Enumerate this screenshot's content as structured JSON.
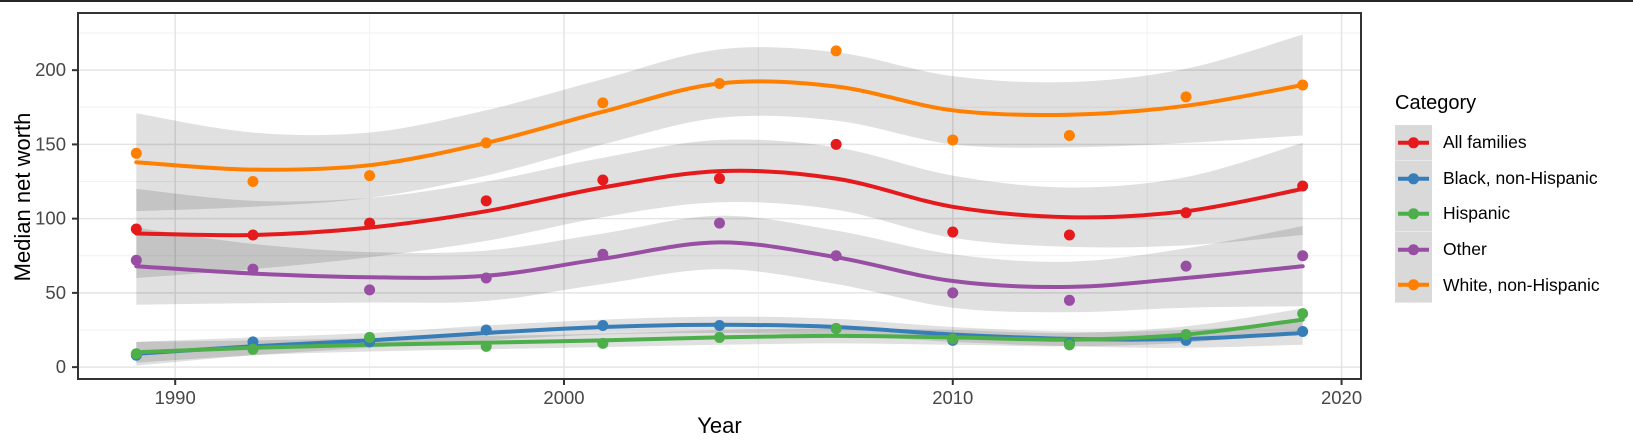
{
  "chart_data": {
    "type": "scatter",
    "title": "",
    "xlabel": "Year",
    "ylabel": "Median net worth",
    "legend_title": "Category",
    "legend_position": "right",
    "grid": true,
    "x": [
      1989,
      1992,
      1995,
      1998,
      2001,
      2004,
      2007,
      2010,
      2013,
      2016,
      2019
    ],
    "xlim": [
      1987.5,
      2020.5
    ],
    "ylim": [
      -8,
      238.5
    ],
    "x_tick_values": [
      1990,
      2000,
      2010,
      2020
    ],
    "x_tick_labels": [
      "1990",
      "2000",
      "2010",
      "2020"
    ],
    "x_minor_values": [
      1995,
      2005,
      2015
    ],
    "y_tick_values": [
      0,
      50,
      100,
      150,
      200
    ],
    "y_tick_labels": [
      "0",
      "50",
      "100",
      "150",
      "200"
    ],
    "y_minor_values": [
      25,
      75,
      125,
      175,
      225
    ],
    "series": [
      {
        "name": "All families",
        "color": "#E41A1C",
        "points": [
          93,
          89,
          97,
          112,
          126,
          127,
          150,
          91,
          89,
          104,
          122
        ],
        "trend": [
          90,
          89,
          94,
          105,
          121,
          132,
          127,
          108,
          101,
          105,
          120
        ],
        "band": [
          30,
          23,
          20,
          20,
          20,
          21,
          21,
          21,
          20,
          23,
          31
        ]
      },
      {
        "name": "Black, non-Hispanic",
        "color": "#377EB8",
        "points": [
          8,
          17,
          17,
          25,
          28,
          28,
          26,
          18,
          16,
          18,
          24
        ],
        "trend": [
          9,
          14,
          18,
          23,
          27,
          28.5,
          27,
          22,
          19,
          19,
          23
        ],
        "band": [
          8,
          6,
          5,
          5,
          5,
          5.5,
          5.5,
          5,
          5,
          6,
          8
        ]
      },
      {
        "name": "Hispanic",
        "color": "#4DAF4A",
        "points": [
          9,
          12,
          20,
          14,
          16,
          20,
          26,
          19,
          15,
          22,
          36
        ],
        "trend": [
          10,
          13,
          15,
          16.5,
          18,
          20,
          21,
          20,
          18.5,
          22,
          32
        ],
        "band": [
          7,
          5,
          4.5,
          4.5,
          4.5,
          5,
          5,
          5,
          4.5,
          5.5,
          7.5
        ]
      },
      {
        "name": "Other",
        "color": "#984EA3",
        "points": [
          72,
          66,
          52,
          60,
          76,
          97,
          75,
          50,
          45,
          68,
          75
        ],
        "trend": [
          68,
          63,
          60.5,
          61.5,
          73,
          84,
          74,
          58,
          54,
          60,
          68
        ],
        "band": [
          26,
          20,
          17,
          17,
          17,
          18,
          18,
          18,
          17,
          20,
          27
        ]
      },
      {
        "name": "White, non-Hispanic",
        "color": "#FF7F00",
        "points": [
          144,
          125,
          129,
          151,
          178,
          191,
          213,
          153,
          156,
          182,
          190
        ],
        "trend": [
          138,
          133,
          136,
          151,
          172,
          191,
          189,
          173,
          170,
          176,
          190
        ],
        "band": [
          33,
          25,
          22,
          22,
          22,
          23,
          23,
          23,
          22,
          25,
          34
        ]
      }
    ],
    "theme": {
      "background": "#FFFFFF",
      "panel_border": "#333333",
      "grid_major": "#E4E4E4",
      "grid_minor": "#F1F1F1",
      "tick_color": "#333333",
      "tick_label_color": "#474747",
      "axis_title_color": "#000000",
      "ribbon_fill": "rgba(0,0,0,0.12)",
      "legend_key_bg": "#D9D9D9",
      "top_divider": "#262626"
    }
  }
}
